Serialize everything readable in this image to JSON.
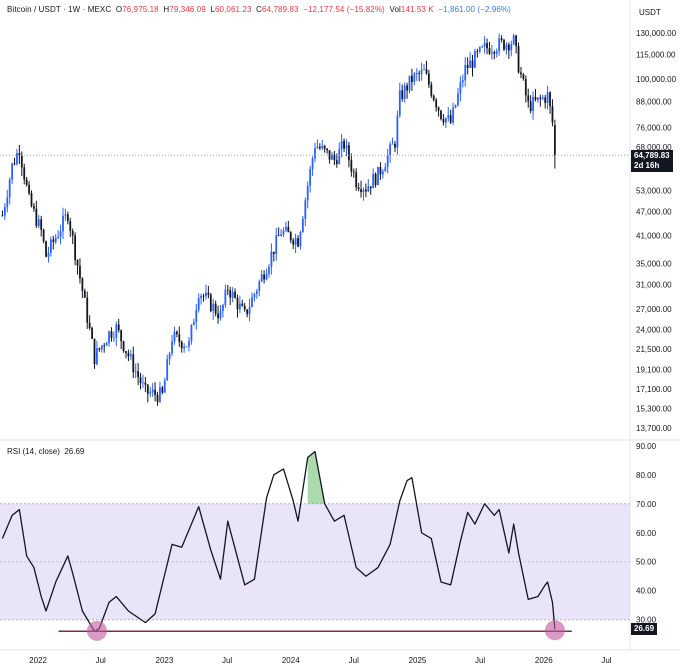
{
  "header": {
    "symbol": "Bitcoin / USDT · 1W · MEXC",
    "open_label": "O",
    "open": "76,975.18",
    "high_label": "H",
    "high": "79,346.09",
    "low_label": "L",
    "low": "60,061.23",
    "close_label": "C",
    "close": "64,789.83",
    "change": "−12,177.54 (−15.82%)",
    "vol_label": "Vol",
    "vol": "141.53 K",
    "vol_change": "−1,861.00 (−2.96%)",
    "currency": "USDT"
  },
  "price_tag": {
    "value": "64,789.83",
    "countdown": "2d 16h"
  },
  "rsi": {
    "title": "RSI (14, close)",
    "value": "26.69",
    "tag": "26.69"
  },
  "colors": {
    "up": "#2962ff",
    "down": "#131722",
    "rsi_line": "#131722",
    "rsi_band": "#e9e4f7",
    "rsi_overbought_fill": "#66bb6a",
    "marker": "#c2569b",
    "support_line": "#7b2a5a",
    "last_price_line": "#9aa0a6",
    "tag_bg": "#131722",
    "tag_text": "#ffffff"
  },
  "chart_data": [
    {
      "type": "candlestick",
      "title": "Bitcoin / USDT · 1W · MEXC",
      "y_scale": "log",
      "ylim": [
        12800,
        140000
      ],
      "y_ticks": [
        "130,000.00",
        "115,000.00",
        "100,000.00",
        "88,000.00",
        "76,000.00",
        "68,000.00",
        "53,000.00",
        "47,000.00",
        "41,000.00",
        "35,000.00",
        "31,000.00",
        "27,000.00",
        "24,000.00",
        "21,500.00",
        "19,100.00",
        "17,100.00",
        "15,300.00",
        "13,700.00"
      ],
      "y_tick_values": [
        130000,
        115000,
        100000,
        88000,
        76000,
        68000,
        53000,
        47000,
        41000,
        35000,
        31000,
        27000,
        24000,
        21500,
        19100,
        17100,
        15300,
        13700
      ],
      "x_ticks": [
        "2022",
        "Jul",
        "2023",
        "Jul",
        "2024",
        "Jul",
        "2025",
        "Jul",
        "2026",
        "Jul"
      ],
      "x_tick_dates": [
        "2022-01-01",
        "2022-07-01",
        "2023-01-01",
        "2023-07-01",
        "2024-01-01",
        "2024-07-01",
        "2025-01-01",
        "2025-07-01",
        "2026-01-01",
        "2026-07-01"
      ],
      "last_close": 64789.83,
      "close_path": [
        [
          "2021-09-20",
          46000
        ],
        [
          "2021-10-18",
          61000
        ],
        [
          "2021-11-08",
          67500
        ],
        [
          "2021-12-06",
          50000
        ],
        [
          "2022-01-10",
          42000
        ],
        [
          "2022-01-24",
          36500
        ],
        [
          "2022-03-28",
          46500
        ],
        [
          "2022-05-09",
          30000
        ],
        [
          "2022-06-13",
          20500
        ],
        [
          "2022-07-25",
          23500
        ],
        [
          "2022-08-15",
          24200
        ],
        [
          "2022-10-03",
          19500
        ],
        [
          "2022-11-07",
          16800
        ],
        [
          "2022-12-26",
          16500
        ],
        [
          "2023-01-23",
          23000
        ],
        [
          "2023-03-13",
          22000
        ],
        [
          "2023-04-10",
          30000
        ],
        [
          "2023-06-12",
          26000
        ],
        [
          "2023-07-03",
          30500
        ],
        [
          "2023-08-21",
          26000
        ],
        [
          "2023-10-23",
          34500
        ],
        [
          "2023-12-04",
          42000
        ],
        [
          "2024-01-22",
          40000
        ],
        [
          "2024-03-11",
          69000
        ],
        [
          "2024-05-06",
          63000
        ],
        [
          "2024-06-03",
          69000
        ],
        [
          "2024-07-08",
          56000
        ],
        [
          "2024-08-05",
          54000
        ],
        [
          "2024-09-09",
          58000
        ],
        [
          "2024-10-28",
          70000
        ],
        [
          "2024-11-11",
          90000
        ],
        [
          "2024-12-16",
          100000
        ],
        [
          "2025-01-20",
          104000
        ],
        [
          "2025-03-10",
          82000
        ],
        [
          "2025-04-07",
          78000
        ],
        [
          "2025-05-19",
          106000
        ],
        [
          "2025-07-14",
          119000
        ],
        [
          "2025-08-11",
          121000
        ],
        [
          "2025-10-06",
          124000
        ],
        [
          "2025-10-20",
          108000
        ],
        [
          "2025-11-17",
          86000
        ],
        [
          "2025-12-15",
          88000
        ],
        [
          "2026-01-12",
          91000
        ],
        [
          "2026-01-26",
          78000
        ],
        [
          "2026-02-02",
          64789.83
        ]
      ]
    },
    {
      "type": "line",
      "title": "RSI (14, close)",
      "ylim": [
        23,
        92
      ],
      "y_ticks": [
        "90.00",
        "80.00",
        "70.00",
        "60.00",
        "50.00",
        "40.00",
        "30.00"
      ],
      "y_tick_values": [
        90,
        80,
        70,
        60,
        50,
        40,
        30
      ],
      "band": [
        30,
        70
      ],
      "midline": 50,
      "last_value": 26.69,
      "support_level": 26.69,
      "markers": [
        {
          "date": "2022-06-20",
          "value": 26.5
        },
        {
          "date": "2026-02-02",
          "value": 26.69
        }
      ],
      "values": [
        [
          "2021-09-20",
          58
        ],
        [
          "2021-10-18",
          66
        ],
        [
          "2021-11-08",
          68
        ],
        [
          "2021-11-29",
          52
        ],
        [
          "2021-12-20",
          48
        ],
        [
          "2022-01-10",
          38
        ],
        [
          "2022-01-24",
          33
        ],
        [
          "2022-02-21",
          43
        ],
        [
          "2022-03-28",
          52
        ],
        [
          "2022-04-11",
          46
        ],
        [
          "2022-05-09",
          33
        ],
        [
          "2022-06-13",
          26
        ],
        [
          "2022-06-27",
          27
        ],
        [
          "2022-07-25",
          36
        ],
        [
          "2022-08-15",
          38
        ],
        [
          "2022-09-19",
          33
        ],
        [
          "2022-11-07",
          29
        ],
        [
          "2022-12-05",
          32
        ],
        [
          "2023-01-23",
          56
        ],
        [
          "2023-02-20",
          55
        ],
        [
          "2023-04-10",
          69
        ],
        [
          "2023-05-15",
          54
        ],
        [
          "2023-06-12",
          44
        ],
        [
          "2023-07-03",
          64
        ],
        [
          "2023-08-21",
          42
        ],
        [
          "2023-09-18",
          44
        ],
        [
          "2023-10-23",
          72
        ],
        [
          "2023-11-13",
          80
        ],
        [
          "2023-12-11",
          82
        ],
        [
          "2024-01-08",
          71
        ],
        [
          "2024-01-22",
          64
        ],
        [
          "2024-02-19",
          86
        ],
        [
          "2024-03-11",
          88
        ],
        [
          "2024-04-08",
          70
        ],
        [
          "2024-05-06",
          64
        ],
        [
          "2024-06-03",
          66
        ],
        [
          "2024-07-08",
          48
        ],
        [
          "2024-08-05",
          45
        ],
        [
          "2024-09-09",
          48
        ],
        [
          "2024-10-14",
          56
        ],
        [
          "2024-11-11",
          71
        ],
        [
          "2024-12-02",
          78
        ],
        [
          "2024-12-16",
          79
        ],
        [
          "2025-01-13",
          60
        ],
        [
          "2025-02-10",
          58
        ],
        [
          "2025-03-10",
          43
        ],
        [
          "2025-04-07",
          42
        ],
        [
          "2025-05-05",
          57
        ],
        [
          "2025-05-26",
          67
        ],
        [
          "2025-06-16",
          63
        ],
        [
          "2025-07-14",
          70
        ],
        [
          "2025-08-11",
          66
        ],
        [
          "2025-08-25",
          68
        ],
        [
          "2025-09-22",
          53
        ],
        [
          "2025-10-06",
          63
        ],
        [
          "2025-10-20",
          53
        ],
        [
          "2025-11-17",
          37
        ],
        [
          "2025-12-15",
          38
        ],
        [
          "2026-01-05",
          42
        ],
        [
          "2026-01-12",
          43
        ],
        [
          "2026-01-26",
          36
        ],
        [
          "2026-02-02",
          26.69
        ]
      ]
    }
  ]
}
